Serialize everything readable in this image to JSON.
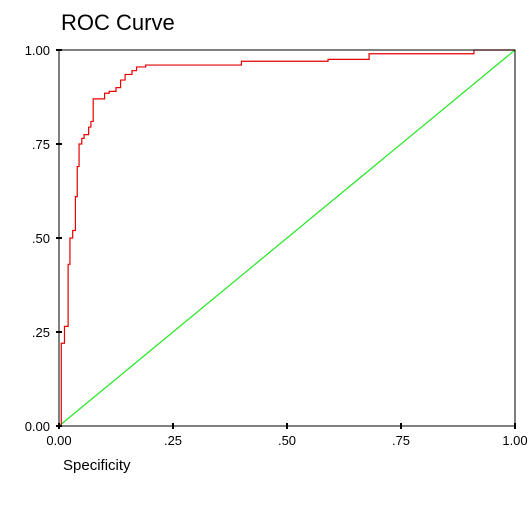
{
  "chart_data": {
    "type": "line",
    "title": "ROC Curve",
    "xlabel": "Specificity",
    "ylabel": "",
    "xlim": [
      0,
      1
    ],
    "ylim": [
      0,
      1
    ],
    "x_ticks": [
      {
        "value": 0,
        "label": "0.00"
      },
      {
        "value": 0.25,
        "label": ".25"
      },
      {
        "value": 0.5,
        "label": ".50"
      },
      {
        "value": 0.75,
        "label": ".75"
      },
      {
        "value": 1,
        "label": "1.00"
      }
    ],
    "y_ticks": [
      {
        "value": 0,
        "label": "0.00"
      },
      {
        "value": 0.25,
        "label": ".25"
      },
      {
        "value": 0.5,
        "label": ".50"
      },
      {
        "value": 0.75,
        "label": ".75"
      },
      {
        "value": 1,
        "label": "1.00"
      }
    ],
    "grid": false,
    "series": [
      {
        "color": "#e60000",
        "shape": "step",
        "points": [
          [
            0,
            0
          ],
          [
            0.005,
            0
          ],
          [
            0.005,
            0.22
          ],
          [
            0.012,
            0.22
          ],
          [
            0.012,
            0.265
          ],
          [
            0.02,
            0.265
          ],
          [
            0.02,
            0.43
          ],
          [
            0.024,
            0.43
          ],
          [
            0.024,
            0.5
          ],
          [
            0.03,
            0.5
          ],
          [
            0.03,
            0.52
          ],
          [
            0.036,
            0.52
          ],
          [
            0.036,
            0.61
          ],
          [
            0.04,
            0.61
          ],
          [
            0.04,
            0.69
          ],
          [
            0.044,
            0.69
          ],
          [
            0.044,
            0.75
          ],
          [
            0.05,
            0.75
          ],
          [
            0.05,
            0.765
          ],
          [
            0.055,
            0.765
          ],
          [
            0.055,
            0.775
          ],
          [
            0.065,
            0.775
          ],
          [
            0.065,
            0.795
          ],
          [
            0.07,
            0.795
          ],
          [
            0.07,
            0.81
          ],
          [
            0.075,
            0.81
          ],
          [
            0.075,
            0.87
          ],
          [
            0.1,
            0.87
          ],
          [
            0.1,
            0.885
          ],
          [
            0.11,
            0.885
          ],
          [
            0.11,
            0.89
          ],
          [
            0.125,
            0.89
          ],
          [
            0.125,
            0.9
          ],
          [
            0.135,
            0.9
          ],
          [
            0.135,
            0.92
          ],
          [
            0.145,
            0.92
          ],
          [
            0.145,
            0.935
          ],
          [
            0.16,
            0.935
          ],
          [
            0.16,
            0.945
          ],
          [
            0.17,
            0.945
          ],
          [
            0.17,
            0.955
          ],
          [
            0.19,
            0.955
          ],
          [
            0.19,
            0.96
          ],
          [
            0.4,
            0.96
          ],
          [
            0.4,
            0.97
          ],
          [
            0.59,
            0.97
          ],
          [
            0.59,
            0.975
          ],
          [
            0.68,
            0.975
          ],
          [
            0.68,
            0.99
          ],
          [
            0.91,
            0.99
          ],
          [
            0.91,
            1.0
          ],
          [
            1.0,
            1.0
          ]
        ]
      },
      {
        "color": "#22e622",
        "shape": "line",
        "points": [
          [
            0,
            0
          ],
          [
            1,
            1
          ]
        ]
      }
    ]
  }
}
